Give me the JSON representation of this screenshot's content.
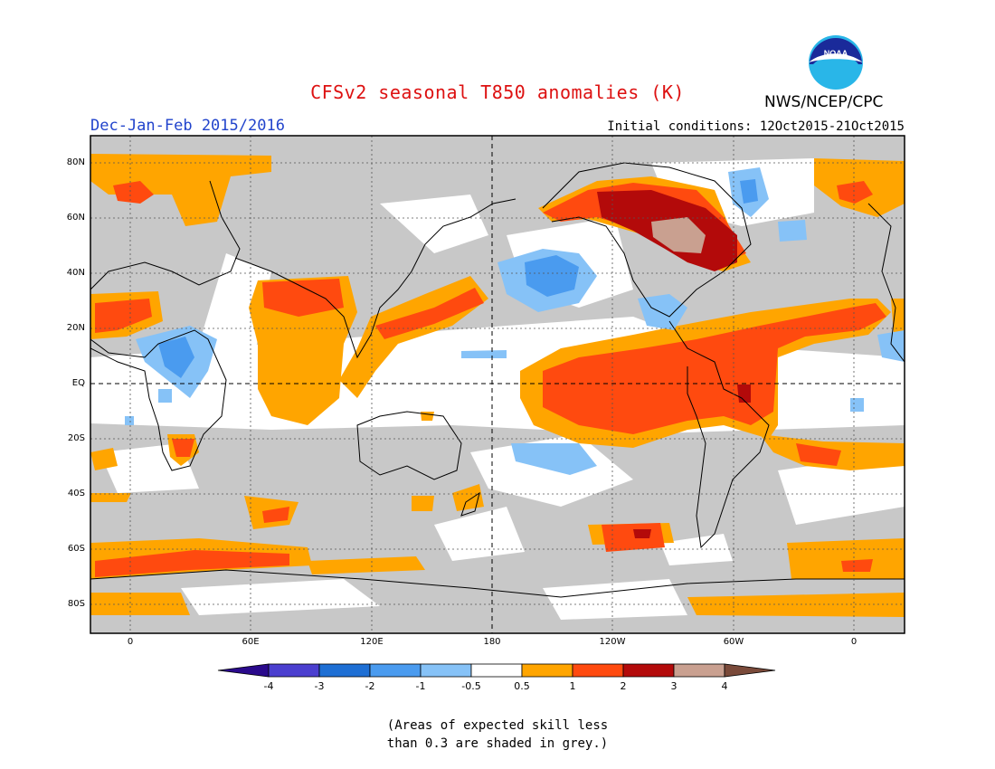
{
  "header": {
    "title": "CFSv2 seasonal T850 anomalies (K)",
    "season": "Dec-Jan-Feb 2015/2016",
    "initial_conditions": "Initial conditions: 12Oct2015-21Oct2015",
    "agency": "NWS/NCEP/CPC",
    "logo_text": "NOAA"
  },
  "map": {
    "lat_labels": [
      "80N",
      "60N",
      "40N",
      "20N",
      "EQ",
      "20S",
      "40S",
      "60S",
      "80S"
    ],
    "lon_labels": [
      "0",
      "60E",
      "120E",
      "180",
      "120W",
      "60W",
      "0"
    ],
    "skill_mask_color": "#c8c8c8",
    "ocean_land_background": "#ffffff"
  },
  "colorbar": {
    "tick_labels": [
      "-4",
      "-3",
      "-2",
      "-1",
      "-0.5",
      "0.5",
      "1",
      "2",
      "3",
      "4"
    ],
    "colors": [
      "#2a0a8c",
      "#4b3fcf",
      "#1e6fd4",
      "#4a9bef",
      "#86c2f7",
      "#ffffff",
      "#ffa500",
      "#ff4a0f",
      "#b30a0a",
      "#c9a090",
      "#7a4a3a"
    ]
  },
  "footnote": {
    "line1": "(Areas of expected skill less",
    "line2": "than 0.3 are shaded in grey.)"
  }
}
